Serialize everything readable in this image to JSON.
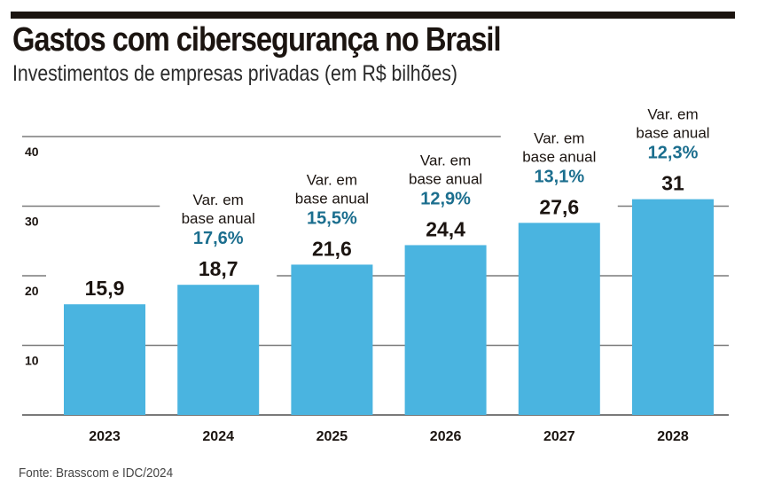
{
  "title": "Gastos com cibersegurança no Brasil",
  "subtitle": "Investimentos de empresas privadas (em R$ bilhões)",
  "source": "Fonte: Brasscom e IDC/2024",
  "colors": {
    "bar": "#4AB4E0",
    "variation": "#1B6E8E",
    "text": "#1b1410",
    "grid": "#7a7a7a"
  },
  "chart_data": {
    "type": "bar",
    "title": "Gastos com cibersegurança no Brasil",
    "subtitle": "Investimentos de empresas privadas (em R$ bilhões)",
    "xlabel": "",
    "ylabel": "",
    "categories": [
      "2023",
      "2024",
      "2025",
      "2026",
      "2027",
      "2028"
    ],
    "values": [
      15.9,
      18.7,
      21.6,
      24.4,
      27.6,
      31
    ],
    "value_labels": [
      "15,9",
      "18,7",
      "21,6",
      "24,4",
      "27,6",
      "31"
    ],
    "variation_label": [
      "Var. em",
      "base anual"
    ],
    "variation": [
      null,
      "17,6%",
      "15,5%",
      "12,9%",
      "13,1%",
      "12,3%"
    ],
    "ylim": [
      0,
      40
    ],
    "yticks": [
      10,
      20,
      30,
      40
    ],
    "grid": true,
    "legend": "none"
  }
}
